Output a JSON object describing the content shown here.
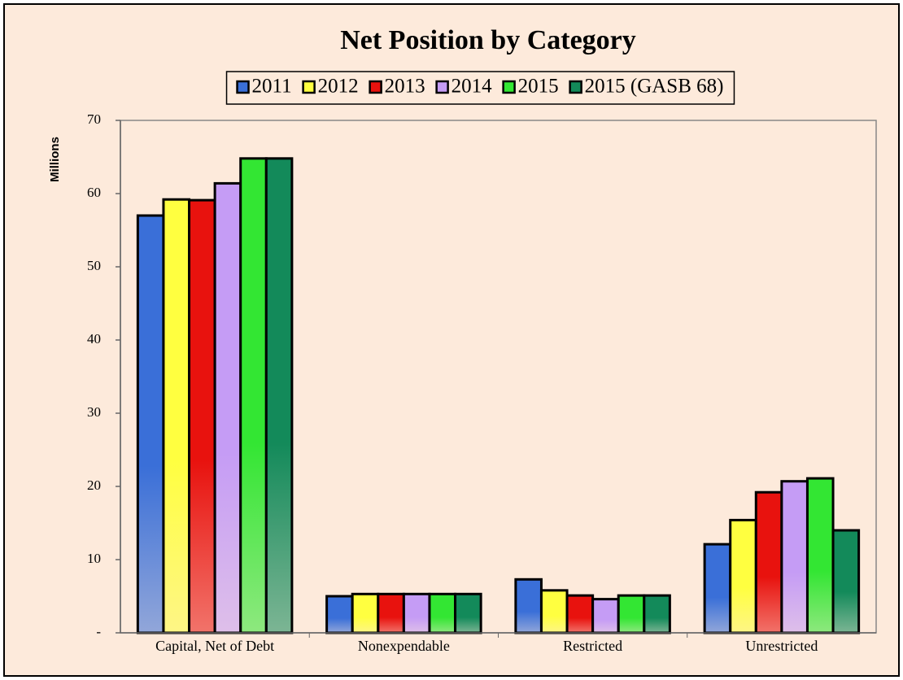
{
  "chart_data": {
    "type": "bar",
    "title": "Net Position by Category",
    "y_label": "Millions",
    "categories": [
      "Capital, Net of Debt",
      "Nonexpendable",
      "Restricted",
      "Unrestricted"
    ],
    "series": [
      {
        "name": "2011",
        "color": "#3a6fd8",
        "values": [
          57.0,
          5.0,
          7.3,
          12.1
        ]
      },
      {
        "name": "2012",
        "color": "#ffff40",
        "values": [
          59.2,
          5.3,
          5.8,
          15.4
        ]
      },
      {
        "name": "2013",
        "color": "#e8120e",
        "values": [
          59.1,
          5.3,
          5.1,
          19.2
        ]
      },
      {
        "name": "2014",
        "color": "#c59cf5",
        "values": [
          61.4,
          5.3,
          4.6,
          20.7
        ]
      },
      {
        "name": "2015",
        "color": "#33e633",
        "values": [
          64.8,
          5.3,
          5.1,
          21.1
        ]
      },
      {
        "name": "2015 (GASB 68)",
        "color": "#138a5a",
        "values": [
          64.8,
          5.3,
          5.1,
          14.0
        ]
      }
    ],
    "ylim": [
      0,
      70
    ],
    "yticks": [
      {
        "value": 0,
        "label": "-"
      },
      10,
      20,
      30,
      40,
      50,
      60,
      70
    ],
    "legend": "top"
  }
}
